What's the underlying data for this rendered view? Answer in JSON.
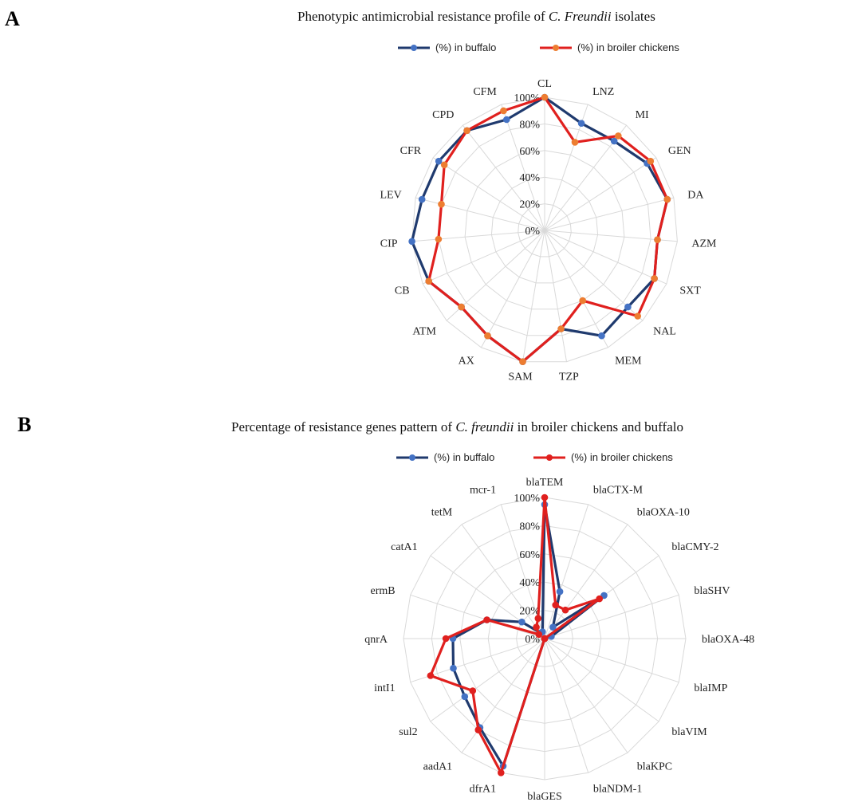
{
  "colors": {
    "buffalo_line": "#1f3a6e",
    "buffalo_marker": "#4472c4",
    "chicken_line": "#e0201e",
    "chicken_marker_A": "#ed7d31",
    "chicken_marker_B": "#e0201e"
  },
  "chart_data": [
    {
      "panel": "A",
      "type": "radar",
      "title_parts": [
        "Phenotypic antimicrobial resistance profile of ",
        "C. Freundii",
        " isolates"
      ],
      "legend": [
        "(%) in buffalo",
        "(%) in broiler chickens"
      ],
      "legend_placement": "top",
      "ticks": [
        "0%",
        "20%",
        "40%",
        "60%",
        "80%",
        "100%"
      ],
      "rlim": [
        0,
        100
      ],
      "categories": [
        "CL",
        "LNZ",
        "MI",
        "GEN",
        "DA",
        "AZM",
        "SXT",
        "NAL",
        "MEM",
        "TZP",
        "SAM",
        "AX",
        "ATM",
        "CB",
        "CIP",
        "LEV",
        "CFR",
        "CPD",
        "CFM"
      ],
      "series": [
        {
          "name": "(%) in buffalo",
          "values": [
            100,
            85,
            85,
            92,
            95,
            85,
            90,
            85,
            90,
            75,
            100,
            90,
            85,
            95,
            100,
            95,
            95,
            95,
            88
          ]
        },
        {
          "name": "(%) in broiler chickens",
          "values": [
            100,
            70,
            90,
            95,
            95,
            85,
            90,
            95,
            60,
            75,
            100,
            90,
            85,
            95,
            80,
            80,
            90,
            95,
            95
          ]
        }
      ]
    },
    {
      "panel": "B",
      "type": "radar",
      "title_parts": [
        "Percentage of resistance genes pattern of ",
        "C. freundii",
        " in broiler chickens and buffalo"
      ],
      "legend": [
        "(%) in buffalo",
        "(%) in broiler chickens"
      ],
      "legend_placement": "top",
      "ticks": [
        "0%",
        "20%",
        "40%",
        "60%",
        "80%",
        "100%"
      ],
      "rlim": [
        0,
        100
      ],
      "categories": [
        "blaTEM",
        "blaCTX-M",
        "blaOXA-10",
        "blaCMY-2",
        "blaSHV",
        "blaOXA-48",
        "blaIMP",
        "blaVIM",
        "blaKPC",
        "blaNDM-1",
        "blaGES",
        "dfrA1",
        "aadA1",
        "sul2",
        "intI1",
        "qnrA",
        "ermB",
        "catA1",
        "tetM",
        "mcr-1"
      ],
      "series": [
        {
          "name": "(%) in buffalo",
          "values": [
            95,
            35,
            10,
            52,
            5,
            0,
            0,
            0,
            0,
            0,
            0,
            95,
            78,
            70,
            68,
            65,
            43,
            20,
            5,
            5
          ]
        },
        {
          "name": "(%) in broiler chickens",
          "values": [
            100,
            25,
            25,
            48,
            0,
            0,
            0,
            0,
            0,
            0,
            0,
            100,
            80,
            63,
            85,
            70,
            43,
            5,
            10,
            15
          ]
        }
      ]
    }
  ]
}
